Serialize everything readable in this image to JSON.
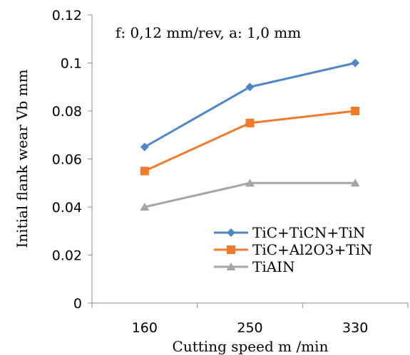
{
  "chart_data": {
    "type": "line",
    "categories": [
      "160",
      "250",
      "330"
    ],
    "series": [
      {
        "name": "TiC+TiCN+TiN",
        "values": [
          0.065,
          0.09,
          0.1
        ],
        "color": "#4f86c6",
        "marker": "diamond"
      },
      {
        "name": "TiC+Al2O3+TiN",
        "values": [
          0.055,
          0.075,
          0.08
        ],
        "color": "#f07a2a",
        "marker": "square"
      },
      {
        "name": "TiAIN",
        "values": [
          0.04,
          0.05,
          0.05
        ],
        "color": "#a5a5a5",
        "marker": "triangle"
      }
    ],
    "title": "",
    "annotation": "f: 0,12 mm/rev, a: 1,0 mm",
    "xlabel": "Cutting speed  m /min",
    "ylabel": "Initial flank wear Vb mm",
    "ylim": [
      0,
      0.12
    ],
    "yticks": [
      "0",
      "0.02",
      "0.04",
      "0.06",
      "0.08",
      "0.1",
      "0.12"
    ],
    "grid": false,
    "legend_position": "bottom-right"
  }
}
